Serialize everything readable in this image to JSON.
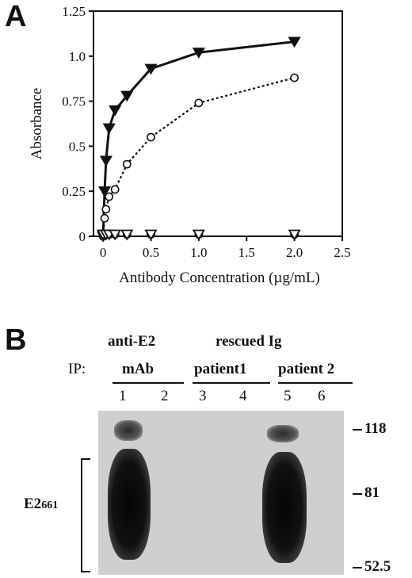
{
  "panel_a": {
    "letter": "A"
  },
  "panel_b": {
    "letter": "B",
    "ip_label": "IP:",
    "groups": [
      {
        "title": "anti-E2",
        "subtitle": "mAb",
        "lanes": [
          "1",
          "2"
        ]
      },
      {
        "title": "rescued Ig",
        "subtitle": "patient1",
        "lanes": [
          "3",
          "4"
        ]
      },
      {
        "title": "",
        "subtitle": "patient 2",
        "lanes": [
          "5",
          "6"
        ]
      }
    ],
    "bracket_label": "E2",
    "bracket_label_sub": "661",
    "markers": [
      "118",
      "81",
      "52.5"
    ]
  },
  "chart_data": {
    "type": "line",
    "title": "",
    "xlabel": "Antibody Concentration (µg/mL)",
    "ylabel": "Absorbance",
    "xlim": [
      -0.1,
      2.5
    ],
    "ylim": [
      0,
      1.25
    ],
    "xticks": [
      "0",
      "0.5",
      "1.0",
      "1.5",
      "2.0",
      "2.5"
    ],
    "yticks": [
      "0",
      "0.25",
      "0.5",
      "0.75",
      "1.0",
      "1.25"
    ],
    "grid": false,
    "series": [
      {
        "marker": "filled-triangle-down",
        "line": "solid",
        "x": [
          0,
          0.016,
          0.031,
          0.063,
          0.125,
          0.25,
          0.5,
          1.0,
          2.0
        ],
        "y": [
          0.0,
          0.25,
          0.42,
          0.6,
          0.7,
          0.78,
          0.93,
          1.02,
          1.08
        ]
      },
      {
        "marker": "open-circle",
        "line": "dotted",
        "x": [
          0,
          0.016,
          0.031,
          0.063,
          0.125,
          0.25,
          0.5,
          1.0,
          2.0
        ],
        "y": [
          0.0,
          0.1,
          0.15,
          0.22,
          0.26,
          0.4,
          0.55,
          0.74,
          0.88
        ]
      },
      {
        "marker": "open-circle",
        "line": "none",
        "x": [
          0,
          0.031,
          0.063,
          0.125,
          0.25,
          0.5,
          1.0,
          2.0
        ],
        "y": [
          0.01,
          0.01,
          0.01,
          0.01,
          0.01,
          0.01,
          0.01,
          0.01
        ]
      },
      {
        "marker": "open-triangle-down",
        "line": "none",
        "x": [
          0,
          0.031,
          0.063,
          0.125,
          0.25,
          0.5,
          1.0,
          2.0
        ],
        "y": [
          0.01,
          0.01,
          0.01,
          0.01,
          0.01,
          0.01,
          0.01,
          0.01
        ]
      }
    ]
  }
}
